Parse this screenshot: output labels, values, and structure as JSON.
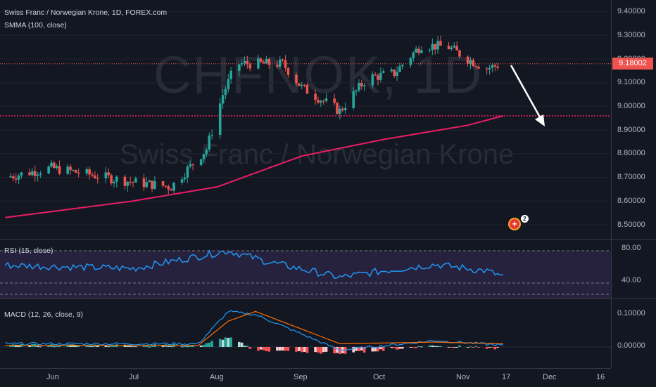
{
  "legend": {
    "symbol_line": "Swiss Franc / Norwegian Krone, 1D, FOREX.com",
    "smma_line": "SMMA (100, close)",
    "rsi_line": "RSI (15, close)",
    "macd_line": "MACD (12, 26, close, 9)"
  },
  "watermark": {
    "symbol": "CHFNOK, 1D",
    "description": "Swiss Franc / Norwegian Krone"
  },
  "colors": {
    "up": "#26a69a",
    "down": "#ef5350",
    "smma": "#e91e63",
    "rsi": "#2196f3",
    "macd": "#2196f3",
    "signal": "#ff6d00",
    "last_price_line": "#ef5350",
    "support_line": "#e91e63",
    "arrow": "#ffffff"
  },
  "main_axis": {
    "ticks": [
      "9.40000",
      "9.30000",
      "9.20000",
      "9.10000",
      "9.00000",
      "8.90000",
      "8.80000",
      "8.70000",
      "8.60000",
      "8.50000"
    ],
    "last_price": "9.18002"
  },
  "rsi_axis": {
    "ticks": [
      "80.00",
      "40.00"
    ]
  },
  "macd_axis": {
    "ticks": [
      "0.10000",
      "0.00000"
    ]
  },
  "time_axis": {
    "ticks": [
      "Jun",
      "Jul",
      "Aug",
      "Sep",
      "Oct",
      "Nov",
      "17",
      "Dec",
      "16"
    ]
  },
  "event": {
    "icon": "swiss-flag-icon",
    "count": "2"
  },
  "chart_data": {
    "type": "candlestick",
    "timeframe": "1D",
    "price_range": [
      8.45,
      9.42
    ],
    "last_price": 9.18002,
    "support_level": 8.96,
    "key_points": [
      {
        "date": "May 15",
        "close": 8.7
      },
      {
        "date": "Jun 1",
        "close": 8.74
      },
      {
        "date": "Jul 1",
        "close": 8.68
      },
      {
        "date": "Jul 15",
        "close": 8.66
      },
      {
        "date": "Jul 28",
        "close": 8.82
      },
      {
        "date": "Aug 3",
        "close": 9.05
      },
      {
        "date": "Aug 8",
        "close": 9.18
      },
      {
        "date": "Aug 25",
        "close": 9.18
      },
      {
        "date": "Sep 1",
        "close": 9.08
      },
      {
        "date": "Sep 15",
        "close": 8.98
      },
      {
        "date": "Sep 25",
        "close": 9.12
      },
      {
        "date": "Oct 5",
        "close": 9.14
      },
      {
        "date": "Oct 15",
        "close": 9.26
      },
      {
        "date": "Oct 25",
        "close": 9.25
      },
      {
        "date": "Nov 1",
        "close": 9.2
      },
      {
        "date": "Nov 8",
        "close": 9.16
      },
      {
        "date": "Nov 14",
        "close": 9.18
      }
    ],
    "smma": [
      {
        "date": "May 15",
        "value": 8.53
      },
      {
        "date": "Jul 1",
        "value": 8.6
      },
      {
        "date": "Aug 1",
        "value": 8.66
      },
      {
        "date": "Sep 1",
        "value": 8.79
      },
      {
        "date": "Oct 1",
        "value": 8.86
      },
      {
        "date": "Nov 1",
        "value": 8.92
      },
      {
        "date": "Nov 14",
        "value": 8.96
      }
    ],
    "rsi": {
      "levels": [
        80,
        40
      ],
      "range": [
        20,
        90
      ],
      "key_points": [
        {
          "date": "May 15",
          "value": 62
        },
        {
          "date": "Jul 1",
          "value": 58
        },
        {
          "date": "Aug 5",
          "value": 80
        },
        {
          "date": "Aug 20",
          "value": 66
        },
        {
          "date": "Sep 15",
          "value": 47
        },
        {
          "date": "Oct 1",
          "value": 55
        },
        {
          "date": "Oct 20",
          "value": 63
        },
        {
          "date": "Nov 8",
          "value": 55
        },
        {
          "date": "Nov 14",
          "value": 48
        }
      ]
    },
    "macd": {
      "range": [
        -0.03,
        0.14
      ],
      "key_points": [
        {
          "date": "Jul 25",
          "macd": 0.01,
          "signal": 0.005
        },
        {
          "date": "Aug 5",
          "macd": 0.11,
          "signal": 0.08
        },
        {
          "date": "Aug 15",
          "macd": 0.1,
          "signal": 0.11
        },
        {
          "date": "Sep 15",
          "macd": -0.01,
          "signal": 0.01
        },
        {
          "date": "Oct 20",
          "macd": 0.02,
          "signal": 0.015
        },
        {
          "date": "Nov 14",
          "macd": 0.005,
          "signal": 0.01
        }
      ]
    },
    "annotations": [
      "horizontal support line at 8.96",
      "white arrow pointing down-right toward support"
    ]
  }
}
